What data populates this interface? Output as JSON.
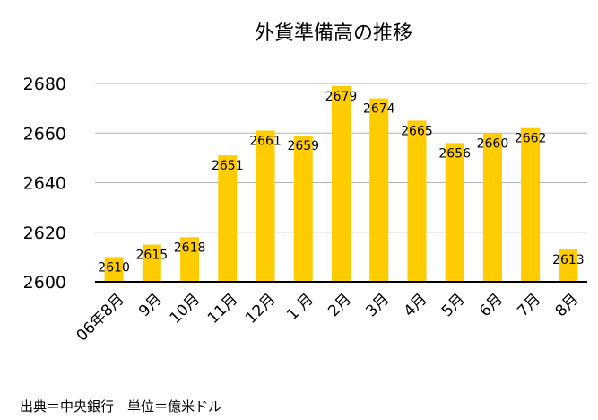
{
  "chart_data": {
    "type": "bar",
    "title": "外貨準備高の推移",
    "xlabel": "",
    "ylabel": "",
    "ylim": [
      2600,
      2680
    ],
    "yticks": [
      2600,
      2620,
      2640,
      2660,
      2680
    ],
    "grid": true,
    "legend": "none",
    "categories": [
      "06年8月",
      "9月",
      "10月",
      "11月",
      "12月",
      "1 月",
      "2月",
      "3月",
      "4月",
      "5月",
      "6月",
      "7月",
      "8月"
    ],
    "values": [
      2610,
      2615,
      2618,
      2651,
      2661,
      2659,
      2679,
      2674,
      2665,
      2656,
      2660,
      2662,
      2613
    ],
    "data_labels": [
      "2610",
      "2615",
      "2618",
      "2651",
      "2661",
      "2659",
      "2679",
      "2674",
      "2665",
      "2656",
      "2660",
      "2662",
      "2613"
    ],
    "bar_color": "#FFCC00",
    "source_note": "出典＝中央銀行　単位＝億米ドル"
  }
}
